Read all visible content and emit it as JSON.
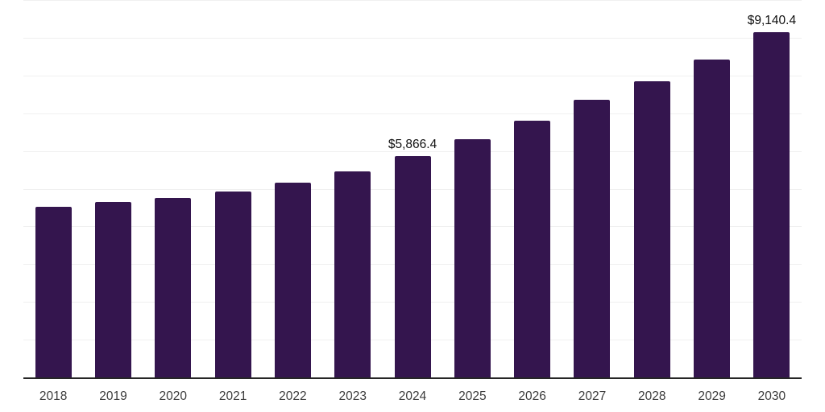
{
  "chart_data": {
    "type": "bar",
    "title": "",
    "xlabel": "",
    "ylabel": "",
    "legend": "none",
    "grid": "horizontal",
    "categories": [
      "2018",
      "2019",
      "2020",
      "2021",
      "2022",
      "2023",
      "2024",
      "2025",
      "2026",
      "2027",
      "2028",
      "2029",
      "2030"
    ],
    "values": [
      4520,
      4650,
      4750,
      4930,
      5160,
      5460,
      5866.4,
      6310,
      6800,
      7360,
      7850,
      8420,
      9140.4
    ],
    "data_labels": [
      "",
      "",
      "",
      "",
      "",
      "",
      "$5,866.4",
      "",
      "",
      "",
      "",
      "",
      "$9,140.4"
    ],
    "ylim": [
      0,
      10000
    ],
    "grid_step": 1000,
    "colors": {
      "bar": "#34154e",
      "axis_line": "#262626",
      "gridline": "#f0f0f0",
      "tick_label": "#3c3c3c",
      "data_label": "#111111",
      "background": "#ffffff"
    }
  }
}
